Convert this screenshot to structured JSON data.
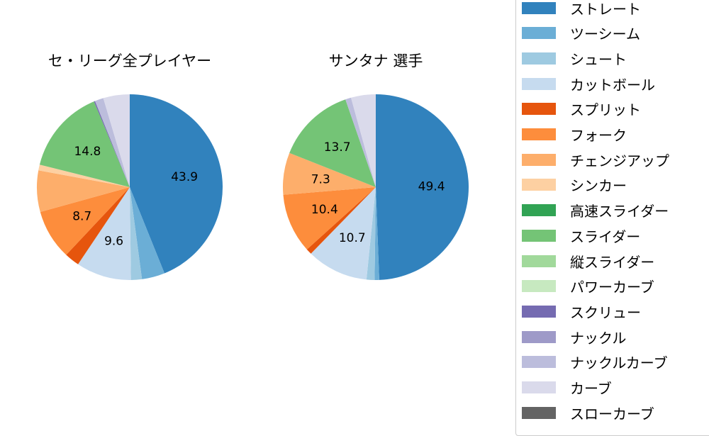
{
  "chart_data": [
    {
      "type": "pie",
      "title": "セ・リーグ全プレイヤー",
      "categories": [
        "ストレート",
        "ツーシーム",
        "シュート",
        "カットボール",
        "スプリット",
        "フォーク",
        "チェンジアップ",
        "シンカー",
        "高速スライダー",
        "スライダー",
        "縦スライダー",
        "パワーカーブ",
        "スクリュー",
        "ナックル",
        "ナックルカーブ",
        "カーブ",
        "スローカーブ"
      ],
      "values": [
        43.9,
        4.0,
        1.9,
        9.6,
        2.6,
        8.7,
        7.2,
        1.0,
        0.0,
        14.8,
        0.0,
        0.0,
        0.2,
        0.0,
        1.5,
        4.6,
        0.0
      ],
      "labels_shown": [
        "43.9",
        "9.6",
        "8.7",
        "14.8"
      ],
      "start_angle": 90,
      "direction": "clockwise"
    },
    {
      "type": "pie",
      "title": "サンタナ  選手",
      "categories": [
        "ストレート",
        "ツーシーム",
        "シュート",
        "カットボール",
        "スプリット",
        "フォーク",
        "チェンジアップ",
        "シンカー",
        "高速スライダー",
        "スライダー",
        "縦スライダー",
        "パワーカーブ",
        "スクリュー",
        "ナックル",
        "ナックルカーブ",
        "カーブ",
        "スローカーブ"
      ],
      "values": [
        49.4,
        0.8,
        1.4,
        10.7,
        1.0,
        10.4,
        7.3,
        0.0,
        0.0,
        13.7,
        0.0,
        0.0,
        0.0,
        0.0,
        1.0,
        4.3,
        0.0
      ],
      "labels_shown": [
        "49.4",
        "10.7",
        "10.4",
        "7.3",
        "13.7"
      ],
      "start_angle": 90,
      "direction": "clockwise"
    }
  ],
  "titles": {
    "left": "セ・リーグ全プレイヤー",
    "right": "サンタナ  選手"
  },
  "legend": {
    "items": [
      {
        "label": "ストレート",
        "color": "#3182bd"
      },
      {
        "label": "ツーシーム",
        "color": "#6baed6"
      },
      {
        "label": "シュート",
        "color": "#9ecae1"
      },
      {
        "label": "カットボール",
        "color": "#c6dbef"
      },
      {
        "label": "スプリット",
        "color": "#e6550d"
      },
      {
        "label": "フォーク",
        "color": "#fd8d3c"
      },
      {
        "label": "チェンジアップ",
        "color": "#fdae6b"
      },
      {
        "label": "シンカー",
        "color": "#fdd0a2"
      },
      {
        "label": "高速スライダー",
        "color": "#31a354"
      },
      {
        "label": "スライダー",
        "color": "#74c476"
      },
      {
        "label": "縦スライダー",
        "color": "#a1d99b"
      },
      {
        "label": "パワーカーブ",
        "color": "#c7e9c0"
      },
      {
        "label": "スクリュー",
        "color": "#756bb1"
      },
      {
        "label": "ナックル",
        "color": "#9e9ac8"
      },
      {
        "label": "ナックルカーブ",
        "color": "#bcbddc"
      },
      {
        "label": "カーブ",
        "color": "#dadaeb"
      },
      {
        "label": "スローカーブ",
        "color": "#636363"
      }
    ]
  }
}
